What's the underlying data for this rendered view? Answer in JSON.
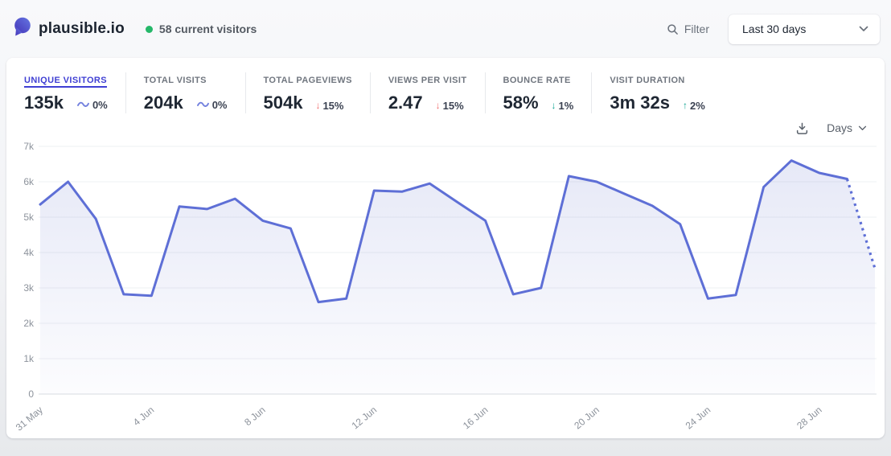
{
  "header": {
    "site_name": "plausible.io",
    "visitors_status": "58 current visitors",
    "filter_label": "Filter",
    "date_range_value": "Last 30 days"
  },
  "toolbar": {
    "interval_label": "Days",
    "download_icon": "download-icon",
    "interval_chevron_icon": "chevron-down-icon"
  },
  "stats": [
    {
      "label": "UNIQUE VISITORS",
      "value": "135k",
      "change": "0%",
      "change_icon": "tilde-icon",
      "trend": "neutral",
      "active": true
    },
    {
      "label": "TOTAL VISITS",
      "value": "204k",
      "change": "0%",
      "change_icon": "tilde-icon",
      "trend": "neutral",
      "active": false
    },
    {
      "label": "TOTAL PAGEVIEWS",
      "value": "504k",
      "change": "15%",
      "change_icon": "arrow-down-icon",
      "trend": "bad",
      "active": false
    },
    {
      "label": "VIEWS PER VISIT",
      "value": "2.47",
      "change": "15%",
      "change_icon": "arrow-down-icon",
      "trend": "bad",
      "active": false
    },
    {
      "label": "BOUNCE RATE",
      "value": "58%",
      "change": "1%",
      "change_icon": "arrow-down-icon",
      "trend": "good",
      "active": false
    },
    {
      "label": "VISIT DURATION",
      "value": "3m 32s",
      "change": "2%",
      "change_icon": "arrow-up-icon",
      "trend": "good",
      "active": false
    }
  ],
  "chart_data": {
    "type": "line",
    "series_name": "Unique visitors",
    "x": [
      "31 May",
      "1 Jun",
      "2 Jun",
      "3 Jun",
      "4 Jun",
      "5 Jun",
      "6 Jun",
      "7 Jun",
      "8 Jun",
      "9 Jun",
      "10 Jun",
      "11 Jun",
      "12 Jun",
      "13 Jun",
      "14 Jun",
      "15 Jun",
      "16 Jun",
      "17 Jun",
      "18 Jun",
      "19 Jun",
      "20 Jun",
      "21 Jun",
      "22 Jun",
      "23 Jun",
      "24 Jun",
      "25 Jun",
      "26 Jun",
      "27 Jun",
      "28 Jun",
      "29 Jun",
      "30 Jun"
    ],
    "values": [
      5360,
      6000,
      4950,
      2820,
      2780,
      5300,
      5230,
      5520,
      4900,
      4680,
      2600,
      2700,
      5750,
      5720,
      5950,
      5420,
      4900,
      2820,
      3000,
      6160,
      6000,
      5660,
      5320,
      4800,
      2700,
      2800,
      5850,
      6600,
      6250,
      6080,
      3550
    ],
    "dashed_from_index": 29,
    "x_tick_labels": [
      "31 May",
      "4 Jun",
      "8 Jun",
      "12 Jun",
      "16 Jun",
      "20 Jun",
      "24 Jun",
      "28 Jun"
    ],
    "x_tick_indices": [
      0,
      4,
      8,
      12,
      16,
      20,
      24,
      28
    ],
    "y_tick_labels": [
      "0",
      "1k",
      "2k",
      "3k",
      "4k",
      "5k",
      "6k",
      "7k"
    ],
    "ylim": [
      0,
      7000
    ],
    "grid": true,
    "legend": false,
    "line_color": "#5e6fd6",
    "fill_color_top": "rgba(101,116,205,0.16)",
    "fill_color_bottom": "rgba(101,116,205,0.02)"
  },
  "colors": {
    "accent_active_metric": "#3f3fd3",
    "trend_bad": "#f06c6c",
    "trend_good": "#12a594",
    "trend_neutral": "#7381de",
    "live_dot": "#25b869"
  }
}
